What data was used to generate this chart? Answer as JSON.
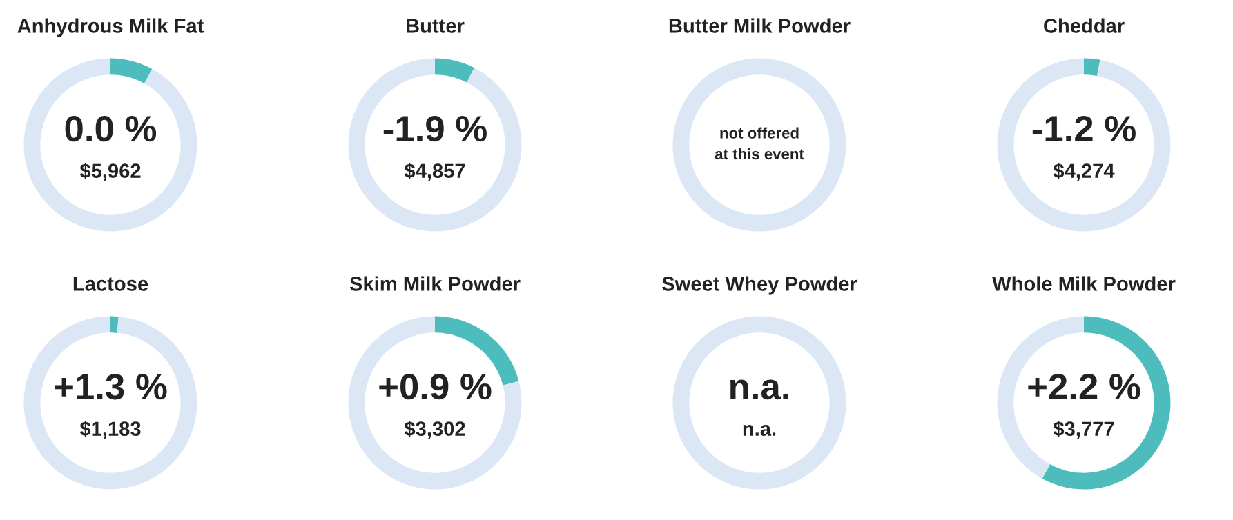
{
  "chart_data": [
    {
      "type": "donut",
      "title": "Anhydrous Milk Fat",
      "categories": [
        null,
        null
      ],
      "values": [
        8,
        92
      ],
      "colors": [
        "#4dbcbc",
        "#dce7f5"
      ],
      "annotations": [
        "0.0 %",
        "$5,962"
      ]
    },
    {
      "type": "donut",
      "title": "Butter",
      "categories": [
        null,
        null
      ],
      "values": [
        7.5,
        92.5
      ],
      "colors": [
        "#4dbcbc",
        "#dce7f5"
      ],
      "annotations": [
        "-1.9 %",
        "$4,857"
      ]
    },
    {
      "type": "other",
      "title": "Butter Milk Powder",
      "annotations": [
        "not offered\nat this event"
      ]
    },
    {
      "type": "donut",
      "title": "Cheddar",
      "categories": [
        null,
        null
      ],
      "values": [
        3,
        97
      ],
      "colors": [
        "#4dbcbc",
        "#dce7f5"
      ],
      "annotations": [
        "-1.2 %",
        "$4,274"
      ]
    },
    {
      "type": "donut",
      "title": "Lactose",
      "categories": [
        null,
        null
      ],
      "values": [
        1.5,
        98.5
      ],
      "colors": [
        "#4dbcbc",
        "#dce7f5"
      ],
      "annotations": [
        "+1.3 %",
        "$1,183"
      ]
    },
    {
      "type": "donut",
      "title": "Skim Milk Powder",
      "categories": [
        null,
        null
      ],
      "values": [
        21,
        79
      ],
      "colors": [
        "#4dbcbc",
        "#dce7f5"
      ],
      "annotations": [
        "+0.9 %",
        "$3,302"
      ]
    },
    {
      "type": "other",
      "title": "Sweet Whey Powder",
      "annotations": [
        "n.a.",
        "n.a."
      ]
    },
    {
      "type": "donut",
      "title": "Whole Milk Powder",
      "categories": [
        null,
        null
      ],
      "values": [
        58,
        42
      ],
      "colors": [
        "#4dbcbc",
        "#dce7f5"
      ],
      "annotations": [
        "+2.2 %",
        "$3,777"
      ]
    }
  ]
}
